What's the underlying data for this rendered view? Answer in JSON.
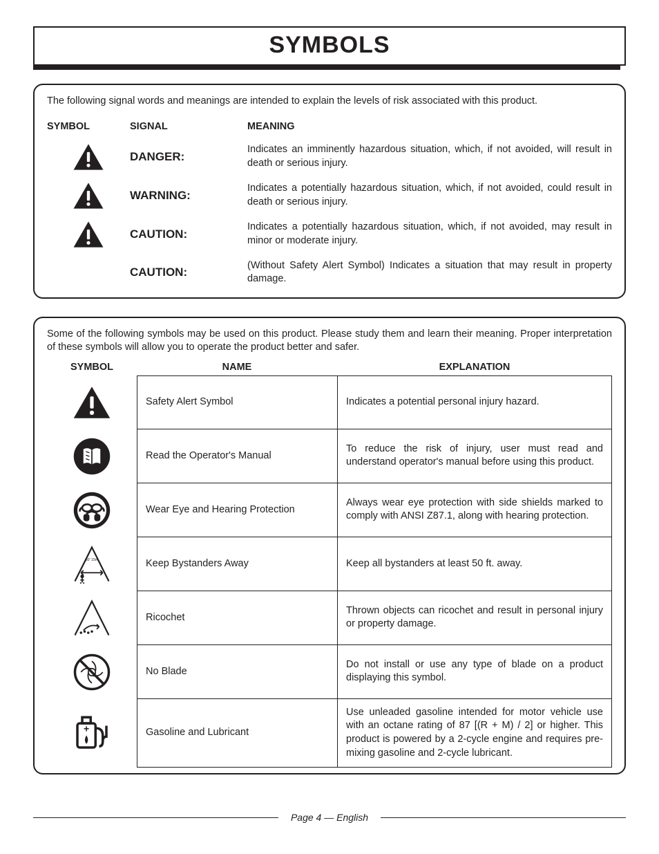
{
  "page": {
    "title": "SYMBOLS",
    "footer": "Page 4 — English"
  },
  "signals": {
    "intro": "The following signal words and meanings are intended to explain the levels of risk associated with this product.",
    "headers": {
      "symbol": "SYMBOL",
      "signal": "SIGNAL",
      "meaning": "MEANING"
    },
    "rows": [
      {
        "signal": "DANGER:",
        "meaning": "Indicates an imminently hazardous situation, which, if not avoided, will result in death or serious injury.",
        "has_icon": true
      },
      {
        "signal": "WARNING:",
        "meaning": "Indicates a potentially hazardous situation, which, if not avoided, could result in death or serious injury.",
        "has_icon": true
      },
      {
        "signal": "CAUTION:",
        "meaning": "Indicates a potentially hazardous situation, which, if not avoided, may result in minor or moderate injury.",
        "has_icon": true
      },
      {
        "signal": "CAUTION:",
        "meaning": "(Without Safety Alert Symbol) Indicates a situation that may result in property damage.",
        "has_icon": false
      }
    ]
  },
  "symbols": {
    "intro": "Some of the following symbols may be used on this product. Please study them and learn their meaning. Proper interpretation of these symbols will allow you to operate the product better and safer.",
    "headers": {
      "symbol": "SYMBOL",
      "name": "NAME",
      "explanation": "EXPLANATION"
    },
    "rows": [
      {
        "icon": "alert",
        "name": "Safety Alert Symbol",
        "explanation": "Indicates a potential personal injury hazard."
      },
      {
        "icon": "manual",
        "name": "Read the Operator's Manual",
        "explanation": "To reduce the risk of injury, user must read and understand operator's manual before using this product."
      },
      {
        "icon": "eyeear",
        "name": "Wear Eye and Hearing Protection",
        "explanation": "Always wear eye protection with side shields marked to comply with ANSI Z87.1, along with hearing protection."
      },
      {
        "icon": "bystander",
        "name": "Keep Bystanders Away",
        "explanation": "Keep all bystanders at least 50 ft. away."
      },
      {
        "icon": "ricochet",
        "name": "Ricochet",
        "explanation": "Thrown objects can ricochet and result in personal injury or property damage."
      },
      {
        "icon": "noblade",
        "name": "No Blade",
        "explanation": "Do not install or use any type of blade on a product displaying this symbol."
      },
      {
        "icon": "fuel",
        "name": "Gasoline and Lubricant",
        "explanation": "Use unleaded gasoline intended for motor vehicle use with an octane rating of 87 [(R + M) / 2] or higher. This product is powered by a 2-cycle engine and requires pre-mixing gasoline and 2-cycle lubricant."
      }
    ]
  },
  "style": {
    "text_color": "#231f20",
    "bg_color": "#ffffff",
    "border_radius": 14,
    "title_fontsize": 34,
    "body_fontsize": 14.5,
    "signal_fontsize": 17
  }
}
